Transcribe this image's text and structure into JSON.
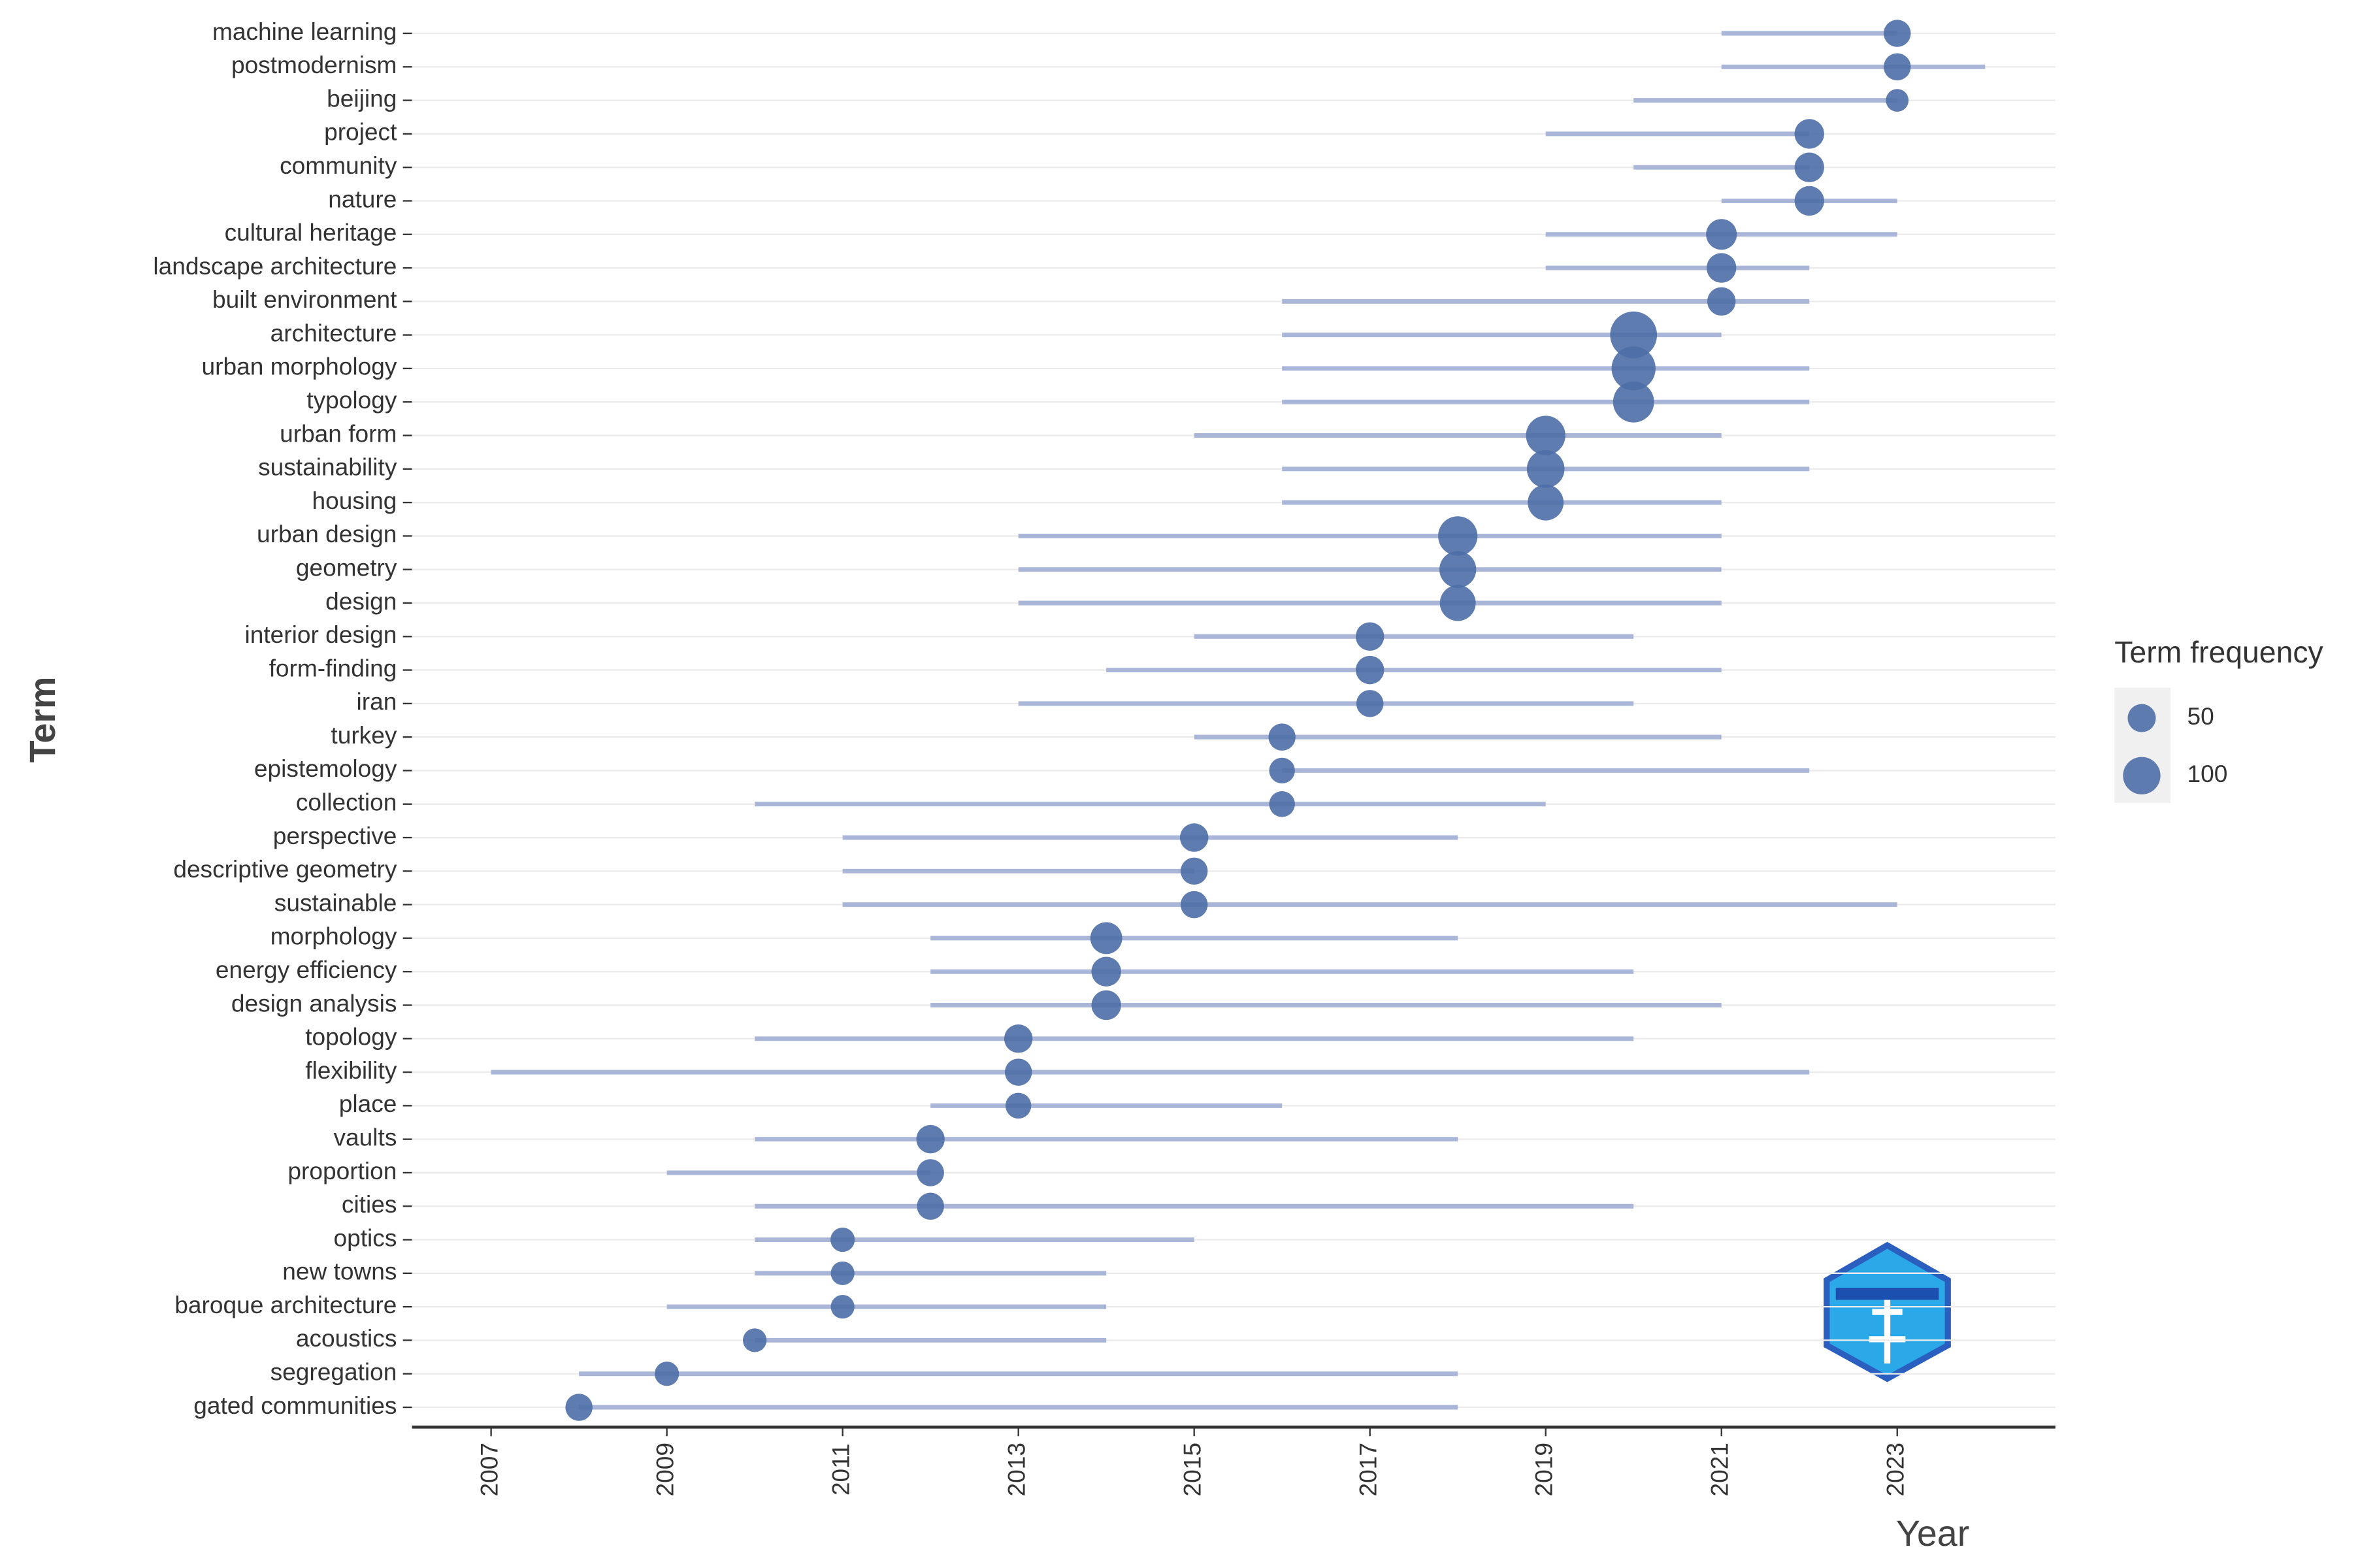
{
  "chart_data": {
    "type": "trend",
    "x_label": "Year",
    "y_label": "Term",
    "legend_title": "Term frequency",
    "categories": [
      "machine learning",
      "postmodernism",
      "beijing",
      "project",
      "community",
      "nature",
      "cultural heritage",
      "landscape architecture",
      "built environment",
      "architecture",
      "urban morphology",
      "typology",
      "urban form",
      "sustainability",
      "housing",
      "urban design",
      "geometry",
      "design",
      "interior design",
      "form-finding",
      "iran",
      "turkey",
      "epistemology",
      "collection",
      "perspective",
      "descriptive geometry",
      "sustainable",
      "morphology",
      "energy efficiency",
      "design analysis",
      "topology",
      "flexibility",
      "place",
      "vaults",
      "proportion",
      "cities",
      "optics",
      "new towns",
      "baroque architecture",
      "acoustics",
      "segregation",
      "gated communities"
    ],
    "q1": [
      2021,
      2021,
      2020,
      2019,
      2020,
      2021,
      2019,
      2019,
      2016,
      2016,
      2016,
      2016,
      2015,
      2016,
      2016,
      2013,
      2013,
      2013,
      2015,
      2014,
      2013,
      2015,
      2016,
      2010,
      2011,
      2011,
      2011,
      2012,
      2012,
      2012,
      2010,
      2007,
      2012,
      2010,
      2009,
      2010,
      2010,
      2010,
      2009,
      2010,
      2008,
      2008
    ],
    "median": [
      2023,
      2023,
      2023,
      2022,
      2022,
      2022,
      2021,
      2021,
      2021,
      2020,
      2020,
      2020,
      2019,
      2019,
      2019,
      2018,
      2018,
      2018,
      2017,
      2017,
      2017,
      2016,
      2016,
      2016,
      2015,
      2015,
      2015,
      2014,
      2014,
      2014,
      2013,
      2013,
      2013,
      2012,
      2012,
      2012,
      2011,
      2011,
      2011,
      2010,
      2009,
      2008
    ],
    "q3": [
      2023,
      2024,
      2023,
      2022,
      2022,
      2023,
      2023,
      2022,
      2022,
      2021,
      2022,
      2022,
      2021,
      2022,
      2021,
      2021,
      2021,
      2021,
      2020,
      2021,
      2020,
      2021,
      2022,
      2019,
      2018,
      2015,
      2023,
      2018,
      2020,
      2021,
      2020,
      2022,
      2016,
      2018,
      2012,
      2020,
      2015,
      2014,
      2014,
      2014,
      2018,
      2018
    ],
    "frequency": [
      40,
      40,
      25,
      50,
      50,
      50,
      55,
      50,
      45,
      150,
      130,
      110,
      100,
      90,
      80,
      100,
      85,
      80,
      45,
      45,
      40,
      40,
      35,
      35,
      45,
      40,
      40,
      60,
      50,
      50,
      45,
      40,
      35,
      45,
      40,
      40,
      30,
      28,
      28,
      28,
      30,
      40
    ],
    "size_legend": [
      50,
      100
    ],
    "xlim": [
      2006.1,
      2024.8
    ],
    "xticks": [
      2007,
      2009,
      2011,
      2013,
      2015,
      2017,
      2019,
      2021,
      2023
    ],
    "line_color": "#aab6d8",
    "point_color": "#4c6ea6",
    "grid": true
  }
}
